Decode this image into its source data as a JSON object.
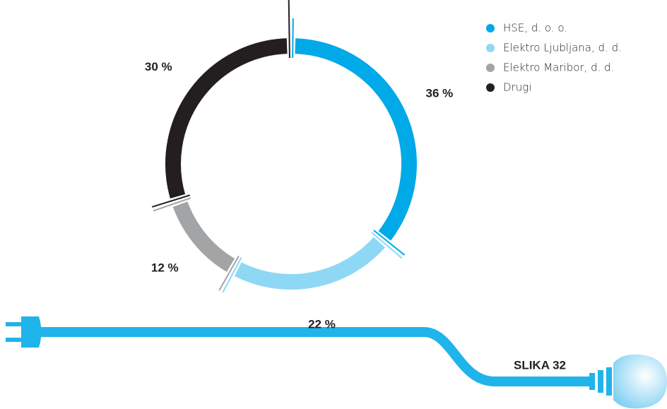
{
  "chart_data": {
    "type": "donut",
    "categories": [
      "HSE, d. o. o.",
      "Elektro Ljubljana, d. d.",
      "Elektro Maribor, d. d.",
      "Drugi"
    ],
    "values": [
      36,
      22,
      12,
      30
    ],
    "value_labels": [
      "36 %",
      "22 %",
      "12 %",
      "30 %"
    ],
    "colors": [
      "#00a9e8",
      "#8fd8f5",
      "#a3a4a6",
      "#231f20"
    ],
    "legend": "top-right",
    "caption": "SLIKA 32"
  }
}
